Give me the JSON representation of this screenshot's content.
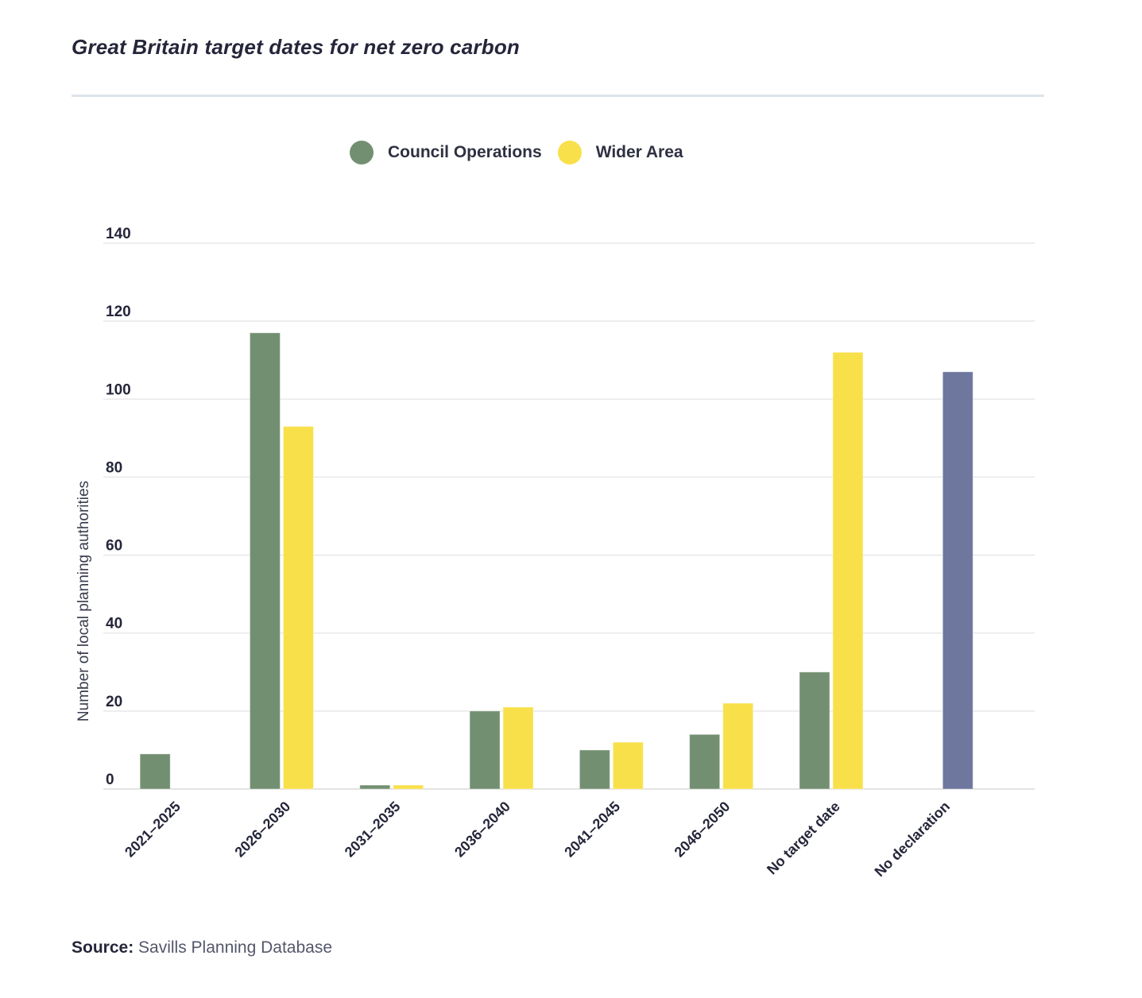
{
  "title": "Great Britain target dates for net zero carbon",
  "source": {
    "label": "Source:",
    "text": "Savills Planning Database"
  },
  "chart_data": {
    "type": "bar",
    "title": "Great Britain target dates for net zero carbon",
    "xlabel": "",
    "ylabel": "Number of local planning authorities",
    "ylim": [
      0,
      140
    ],
    "yticks": [
      0,
      20,
      40,
      60,
      80,
      100,
      120,
      140
    ],
    "grid": true,
    "legend_position": "top-center",
    "categories": [
      "2021–2025",
      "2026–2030",
      "2031–2035",
      "2036–2040",
      "2041–2045",
      "2046–2050",
      "No target date",
      "No declaration"
    ],
    "series": [
      {
        "name": "Council Operations",
        "color": "#738f71",
        "values": [
          9,
          117,
          1,
          20,
          10,
          14,
          30,
          null
        ]
      },
      {
        "name": "Wider Area",
        "color": "#f8e04a",
        "values": [
          null,
          93,
          1,
          21,
          12,
          22,
          112,
          null
        ]
      },
      {
        "name": "No declaration",
        "color": "#6e779e",
        "values": [
          null,
          null,
          null,
          null,
          null,
          null,
          null,
          107
        ],
        "in_legend": false
      }
    ]
  }
}
